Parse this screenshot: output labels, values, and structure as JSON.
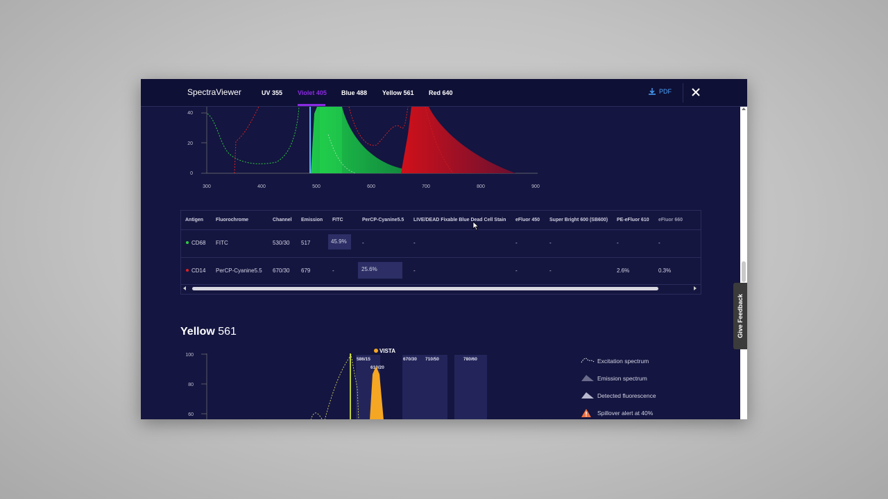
{
  "app": {
    "title": "SpectraViewer"
  },
  "tabs": [
    {
      "label": "UV 355"
    },
    {
      "label": "Violet 405"
    },
    {
      "label": "Blue 488"
    },
    {
      "label": "Yellow 561"
    },
    {
      "label": "Red 640"
    }
  ],
  "active_tab": "Violet 405",
  "toolbar": {
    "pdf_label": "PDF",
    "close_icon": "close-icon",
    "download_icon": "download-icon"
  },
  "feedback": {
    "label": "Give Feedback"
  },
  "chart_top": {
    "y_ticks": [
      "40",
      "20",
      "0"
    ],
    "x_ticks": [
      "300",
      "400",
      "500",
      "600",
      "700",
      "800",
      "900"
    ]
  },
  "table": {
    "headers": [
      "Antigen",
      "Fluorochrome",
      "Channel",
      "Emission",
      "FITC",
      "PerCP-Cyanine5.5",
      "LIVE/DEAD Fixable Blue Dead Cell Stain",
      "eFluor 450",
      "Super Bright 600 (SB600)",
      "PE-eFluor 610",
      "eFluor 660"
    ],
    "rows": [
      {
        "antigen": "CD68",
        "dot_color": "#2ecc40",
        "fluorochrome": "FITC",
        "channel": "530/30",
        "emission": "517",
        "cells": [
          "45.9%",
          "-",
          "-",
          "-",
          "-",
          "-",
          "-"
        ]
      },
      {
        "antigen": "CD14",
        "dot_color": "#e02020",
        "fluorochrome": "PerCP-Cyanine5.5",
        "channel": "670/30",
        "emission": "679",
        "cells": [
          "-",
          "25.6%",
          "-",
          "-",
          "-",
          "2.6%",
          "0.3%"
        ]
      }
    ]
  },
  "section": {
    "title_bold": "Yellow",
    "title_rest": " 561"
  },
  "chart_bottom": {
    "y_ticks": [
      "100",
      "80",
      "60"
    ],
    "filters": [
      "586/15",
      "610/20",
      "670/30",
      "710/50",
      "780/60"
    ],
    "marker_label": "VISTA"
  },
  "legend": [
    {
      "label": "Excitation spectrum",
      "icon": "excitation-dotted-icon"
    },
    {
      "label": "Emission spectrum",
      "icon": "emission-peak-icon"
    },
    {
      "label": "Detected fluorescence",
      "icon": "detected-peak-icon"
    },
    {
      "label": "Spillover alert at 40%",
      "icon": "warning-triangle-icon"
    }
  ],
  "colors": {
    "background": "#141540",
    "accent": "#8a2be2",
    "pdf": "#4aa3ff",
    "green": "#1ec83c",
    "red": "#d0101a",
    "orange": "#f5a623"
  }
}
